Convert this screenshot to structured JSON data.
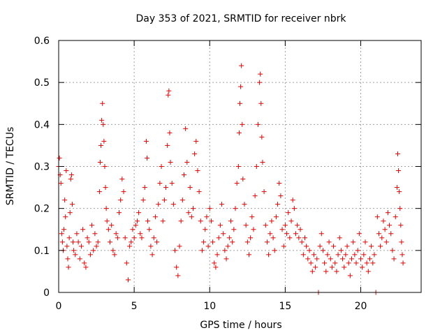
{
  "chart_data": {
    "type": "scatter",
    "title": "Day 353 of 2021, SRMTID for receiver nbrk",
    "xlabel": "GPS time / hours",
    "ylabel": "SRMTID / TECUs",
    "xlim": [
      0,
      24
    ],
    "ylim": [
      0,
      0.6
    ],
    "xticks": [
      0,
      5,
      10,
      15,
      20
    ],
    "yticks": [
      0,
      0.1,
      0.2,
      0.3,
      0.4,
      0.5,
      0.6
    ],
    "xtick_labels": [
      "0",
      "5",
      "10",
      "15",
      "20"
    ],
    "ytick_labels": [
      "0",
      "0.1",
      "0.2",
      "0.3",
      "0.4",
      "0.5",
      "0.6"
    ],
    "grid": true,
    "marker": "plus",
    "color": "#e60000",
    "series": [
      {
        "name": "SRMTID",
        "points": [
          [
            0.0,
            0.3
          ],
          [
            0.05,
            0.32
          ],
          [
            0.1,
            0.28
          ],
          [
            0.15,
            0.26
          ],
          [
            0.2,
            0.14
          ],
          [
            0.25,
            0.12
          ],
          [
            0.3,
            0.1
          ],
          [
            0.35,
            0.15
          ],
          [
            0.4,
            0.22
          ],
          [
            0.45,
            0.18
          ],
          [
            0.5,
            0.29
          ],
          [
            0.55,
            0.11
          ],
          [
            0.6,
            0.08
          ],
          [
            0.65,
            0.06
          ],
          [
            0.7,
            0.13
          ],
          [
            0.75,
            0.19
          ],
          [
            0.8,
            0.27
          ],
          [
            0.85,
            0.28
          ],
          [
            0.9,
            0.21
          ],
          [
            0.95,
            0.12
          ],
          [
            1.0,
            0.1
          ],
          [
            1.1,
            0.09
          ],
          [
            1.2,
            0.14
          ],
          [
            1.3,
            0.12
          ],
          [
            1.4,
            0.08
          ],
          [
            1.5,
            0.11
          ],
          [
            1.6,
            0.15
          ],
          [
            1.7,
            0.07
          ],
          [
            1.8,
            0.06
          ],
          [
            1.9,
            0.13
          ],
          [
            2.0,
            0.12
          ],
          [
            2.1,
            0.09
          ],
          [
            2.2,
            0.16
          ],
          [
            2.3,
            0.1
          ],
          [
            2.4,
            0.14
          ],
          [
            2.5,
            0.11
          ],
          [
            2.6,
            0.12
          ],
          [
            2.7,
            0.24
          ],
          [
            2.75,
            0.31
          ],
          [
            2.8,
            0.35
          ],
          [
            2.85,
            0.41
          ],
          [
            2.9,
            0.45
          ],
          [
            2.95,
            0.4
          ],
          [
            3.0,
            0.36
          ],
          [
            3.05,
            0.3
          ],
          [
            3.1,
            0.25
          ],
          [
            3.15,
            0.2
          ],
          [
            3.2,
            0.17
          ],
          [
            3.3,
            0.15
          ],
          [
            3.4,
            0.12
          ],
          [
            3.5,
            0.16
          ],
          [
            3.6,
            0.1
          ],
          [
            3.7,
            0.09
          ],
          [
            3.8,
            0.14
          ],
          [
            3.9,
            0.13
          ],
          [
            4.0,
            0.19
          ],
          [
            4.1,
            0.22
          ],
          [
            4.2,
            0.27
          ],
          [
            4.3,
            0.24
          ],
          [
            4.4,
            0.13
          ],
          [
            4.5,
            0.07
          ],
          [
            4.6,
            0.03
          ],
          [
            4.7,
            0.11
          ],
          [
            4.8,
            0.12
          ],
          [
            4.9,
            0.15
          ],
          [
            5.0,
            0.13
          ],
          [
            5.1,
            0.16
          ],
          [
            5.2,
            0.17
          ],
          [
            5.3,
            0.19
          ],
          [
            5.4,
            0.14
          ],
          [
            5.5,
            0.13
          ],
          [
            5.6,
            0.22
          ],
          [
            5.7,
            0.25
          ],
          [
            5.8,
            0.36
          ],
          [
            5.85,
            0.32
          ],
          [
            5.9,
            0.17
          ],
          [
            6.0,
            0.15
          ],
          [
            6.1,
            0.11
          ],
          [
            6.2,
            0.09
          ],
          [
            6.3,
            0.13
          ],
          [
            6.4,
            0.18
          ],
          [
            6.5,
            0.12
          ],
          [
            6.6,
            0.21
          ],
          [
            6.7,
            0.26
          ],
          [
            6.8,
            0.3
          ],
          [
            6.9,
            0.17
          ],
          [
            7.0,
            0.22
          ],
          [
            7.1,
            0.25
          ],
          [
            7.2,
            0.35
          ],
          [
            7.25,
            0.47
          ],
          [
            7.3,
            0.48
          ],
          [
            7.35,
            0.38
          ],
          [
            7.4,
            0.31
          ],
          [
            7.5,
            0.26
          ],
          [
            7.6,
            0.21
          ],
          [
            7.7,
            0.1
          ],
          [
            7.8,
            0.06
          ],
          [
            7.9,
            0.04
          ],
          [
            8.0,
            0.11
          ],
          [
            8.1,
            0.17
          ],
          [
            8.2,
            0.22
          ],
          [
            8.3,
            0.28
          ],
          [
            8.4,
            0.39
          ],
          [
            8.5,
            0.31
          ],
          [
            8.6,
            0.19
          ],
          [
            8.7,
            0.25
          ],
          [
            8.8,
            0.18
          ],
          [
            8.9,
            0.2
          ],
          [
            9.0,
            0.33
          ],
          [
            9.1,
            0.36
          ],
          [
            9.2,
            0.29
          ],
          [
            9.3,
            0.24
          ],
          [
            9.4,
            0.17
          ],
          [
            9.5,
            0.1
          ],
          [
            9.6,
            0.12
          ],
          [
            9.7,
            0.15
          ],
          [
            9.8,
            0.18
          ],
          [
            9.9,
            0.11
          ],
          [
            10.0,
            0.2
          ],
          [
            10.1,
            0.17
          ],
          [
            10.2,
            0.12
          ],
          [
            10.3,
            0.07
          ],
          [
            10.4,
            0.06
          ],
          [
            10.5,
            0.09
          ],
          [
            10.6,
            0.13
          ],
          [
            10.7,
            0.16
          ],
          [
            10.8,
            0.21
          ],
          [
            10.9,
            0.14
          ],
          [
            11.0,
            0.1
          ],
          [
            11.1,
            0.08
          ],
          [
            11.2,
            0.11
          ],
          [
            11.3,
            0.13
          ],
          [
            11.4,
            0.17
          ],
          [
            11.5,
            0.12
          ],
          [
            11.6,
            0.15
          ],
          [
            11.7,
            0.2
          ],
          [
            11.8,
            0.26
          ],
          [
            11.9,
            0.3
          ],
          [
            11.95,
            0.38
          ],
          [
            12.0,
            0.45
          ],
          [
            12.05,
            0.49
          ],
          [
            12.1,
            0.54
          ],
          [
            12.15,
            0.4
          ],
          [
            12.2,
            0.27
          ],
          [
            12.3,
            0.21
          ],
          [
            12.4,
            0.16
          ],
          [
            12.5,
            0.12
          ],
          [
            12.6,
            0.09
          ],
          [
            12.7,
            0.13
          ],
          [
            12.8,
            0.18
          ],
          [
            12.9,
            0.15
          ],
          [
            13.0,
            0.23
          ],
          [
            13.1,
            0.3
          ],
          [
            13.2,
            0.4
          ],
          [
            13.3,
            0.5
          ],
          [
            13.35,
            0.52
          ],
          [
            13.4,
            0.45
          ],
          [
            13.45,
            0.37
          ],
          [
            13.5,
            0.31
          ],
          [
            13.6,
            0.24
          ],
          [
            13.7,
            0.16
          ],
          [
            13.8,
            0.12
          ],
          [
            13.9,
            0.09
          ],
          [
            14.0,
            0.14
          ],
          [
            14.1,
            0.17
          ],
          [
            14.2,
            0.13
          ],
          [
            14.3,
            0.1
          ],
          [
            14.4,
            0.18
          ],
          [
            14.5,
            0.21
          ],
          [
            14.6,
            0.26
          ],
          [
            14.7,
            0.23
          ],
          [
            14.8,
            0.15
          ],
          [
            14.9,
            0.11
          ],
          [
            15.0,
            0.16
          ],
          [
            15.1,
            0.14
          ],
          [
            15.2,
            0.19
          ],
          [
            15.3,
            0.13
          ],
          [
            15.4,
            0.17
          ],
          [
            15.5,
            0.22
          ],
          [
            15.6,
            0.2
          ],
          [
            15.7,
            0.14
          ],
          [
            15.8,
            0.16
          ],
          [
            15.9,
            0.13
          ],
          [
            16.0,
            0.15
          ],
          [
            16.1,
            0.12
          ],
          [
            16.2,
            0.09
          ],
          [
            16.3,
            0.13
          ],
          [
            16.4,
            0.11
          ],
          [
            16.5,
            0.08
          ],
          [
            16.6,
            0.1
          ],
          [
            16.7,
            0.07
          ],
          [
            16.8,
            0.05
          ],
          [
            16.9,
            0.09
          ],
          [
            17.0,
            0.06
          ],
          [
            17.1,
            0.08
          ],
          [
            17.2,
            0.0
          ],
          [
            17.3,
            0.11
          ],
          [
            17.4,
            0.14
          ],
          [
            17.5,
            0.1
          ],
          [
            17.6,
            0.07
          ],
          [
            17.7,
            0.05
          ],
          [
            17.8,
            0.09
          ],
          [
            17.9,
            0.12
          ],
          [
            18.0,
            0.08
          ],
          [
            18.1,
            0.06
          ],
          [
            18.2,
            0.11
          ],
          [
            18.3,
            0.07
          ],
          [
            18.4,
            0.05
          ],
          [
            18.5,
            0.09
          ],
          [
            18.6,
            0.13
          ],
          [
            18.7,
            0.1
          ],
          [
            18.8,
            0.08
          ],
          [
            18.9,
            0.06
          ],
          [
            19.0,
            0.09
          ],
          [
            19.1,
            0.11
          ],
          [
            19.2,
            0.07
          ],
          [
            19.3,
            0.04
          ],
          [
            19.4,
            0.08
          ],
          [
            19.5,
            0.12
          ],
          [
            19.6,
            0.09
          ],
          [
            19.7,
            0.07
          ],
          [
            19.8,
            0.1
          ],
          [
            19.9,
            0.14
          ],
          [
            20.0,
            0.08
          ],
          [
            20.1,
            0.06
          ],
          [
            20.2,
            0.09
          ],
          [
            20.3,
            0.12
          ],
          [
            20.4,
            0.07
          ],
          [
            20.5,
            0.05
          ],
          [
            20.6,
            0.08
          ],
          [
            20.7,
            0.11
          ],
          [
            20.8,
            0.07
          ],
          [
            20.9,
            0.09
          ],
          [
            21.0,
            0.0
          ],
          [
            21.1,
            0.18
          ],
          [
            21.2,
            0.14
          ],
          [
            21.3,
            0.11
          ],
          [
            21.4,
            0.13
          ],
          [
            21.5,
            0.17
          ],
          [
            21.6,
            0.15
          ],
          [
            21.7,
            0.12
          ],
          [
            21.8,
            0.19
          ],
          [
            21.9,
            0.16
          ],
          [
            22.0,
            0.14
          ],
          [
            22.1,
            0.1
          ],
          [
            22.2,
            0.08
          ],
          [
            22.3,
            0.18
          ],
          [
            22.4,
            0.25
          ],
          [
            22.45,
            0.33
          ],
          [
            22.5,
            0.29
          ],
          [
            22.55,
            0.24
          ],
          [
            22.6,
            0.2
          ],
          [
            22.65,
            0.16
          ],
          [
            22.7,
            0.12
          ],
          [
            22.75,
            0.09
          ],
          [
            22.8,
            0.07
          ]
        ]
      }
    ]
  }
}
